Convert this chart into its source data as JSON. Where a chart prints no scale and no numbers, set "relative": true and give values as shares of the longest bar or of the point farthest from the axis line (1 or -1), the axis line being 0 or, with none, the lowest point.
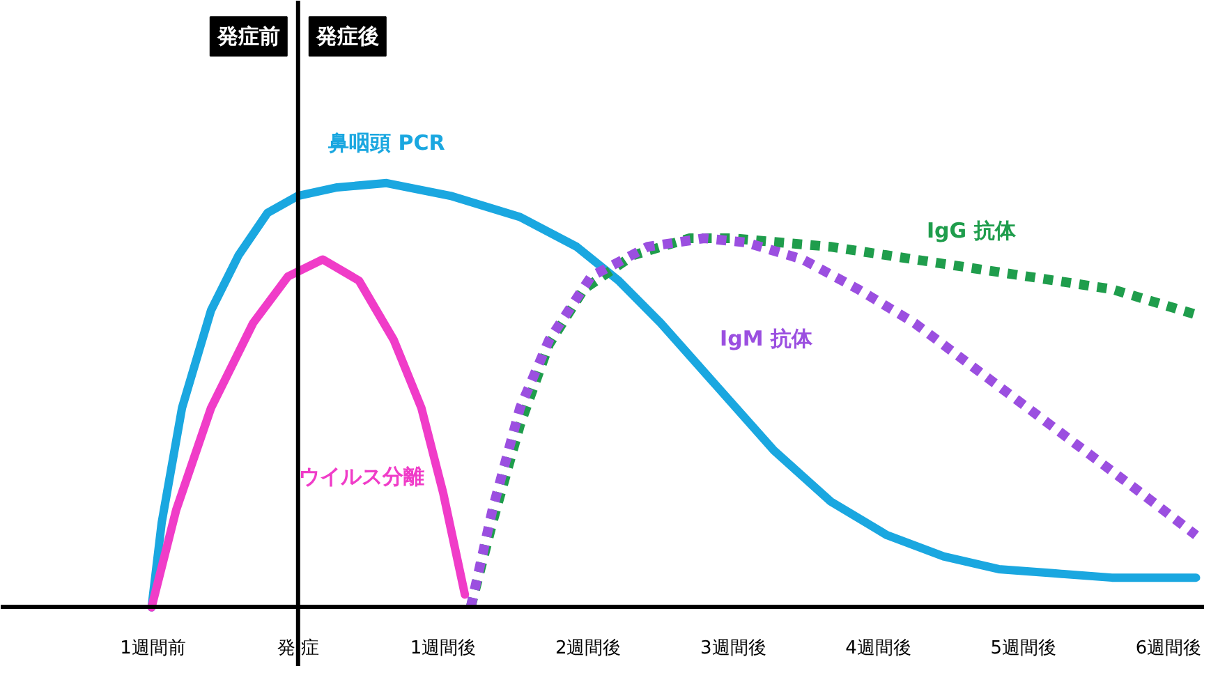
{
  "chart_data": {
    "type": "line",
    "relative": true,
    "grid": false,
    "marker": "none",
    "xlim": [
      -2.05,
      6.25
    ],
    "xticks": [
      {
        "value": -1,
        "label": "1週間前"
      },
      {
        "value": 0,
        "label": "発 症"
      },
      {
        "value": 1,
        "label": "1週間後"
      },
      {
        "value": 2,
        "label": "2週間後"
      },
      {
        "value": 3,
        "label": "3週間後"
      },
      {
        "value": 4,
        "label": "4週間後"
      },
      {
        "value": 5,
        "label": "5週間後"
      },
      {
        "value": 6,
        "label": "6週間後"
      }
    ],
    "tick_labels": "x",
    "ref_lines": [
      {
        "axis": "x",
        "value": 0,
        "color": "#000000",
        "line_style": "solid"
      }
    ],
    "annotations": [
      "発症前",
      "発症後"
    ],
    "series": [
      {
        "name": "鼻咽頭 PCR",
        "color": "#1aa7e0",
        "line_style": "solid",
        "x": [
          -1.01,
          -0.94,
          -0.8,
          -0.6,
          -0.41,
          -0.21,
          0,
          0.27,
          0.61,
          1.05,
          1.53,
          1.92,
          2.21,
          2.5,
          2.89,
          3.28,
          3.67,
          4.06,
          4.45,
          4.83,
          5.22,
          5.61,
          6.19
        ],
        "values": [
          0,
          0.2,
          0.47,
          0.7,
          0.83,
          0.93,
          0.97,
          0.99,
          1.0,
          0.97,
          0.92,
          0.85,
          0.77,
          0.67,
          0.52,
          0.37,
          0.25,
          0.17,
          0.12,
          0.09,
          0.08,
          0.07,
          0.07
        ]
      },
      {
        "name": "ウイルス分離",
        "color": "#f03cc8",
        "line_style": "solid",
        "x": [
          -1.01,
          -0.84,
          -0.6,
          -0.31,
          -0.07,
          0.17,
          0.42,
          0.66,
          0.85,
          1.0,
          1.15
        ],
        "values": [
          0,
          0.23,
          0.47,
          0.67,
          0.78,
          0.82,
          0.77,
          0.63,
          0.47,
          0.27,
          0.03
        ]
      },
      {
        "name": "IgG 抗体",
        "color": "#1f9d4c",
        "line_style": "dotted",
        "x": [
          1.19,
          1.34,
          1.53,
          1.73,
          1.97,
          2.31,
          2.7,
          2.99,
          3.67,
          4.64,
          5.61,
          6.19
        ],
        "values": [
          0,
          0.2,
          0.43,
          0.62,
          0.75,
          0.83,
          0.87,
          0.87,
          0.85,
          0.8,
          0.75,
          0.69
        ]
      },
      {
        "name": "IgM 抗体",
        "color": "#9b4fe0",
        "line_style": "dotted",
        "x": [
          1.19,
          1.34,
          1.53,
          1.73,
          2.02,
          2.41,
          2.8,
          3.09,
          3.48,
          3.86,
          4.25,
          4.64,
          5.03,
          5.42,
          5.81,
          6.19
        ],
        "values": [
          0,
          0.23,
          0.47,
          0.63,
          0.78,
          0.85,
          0.87,
          0.86,
          0.82,
          0.75,
          0.67,
          0.57,
          0.47,
          0.37,
          0.27,
          0.17
        ]
      }
    ]
  }
}
